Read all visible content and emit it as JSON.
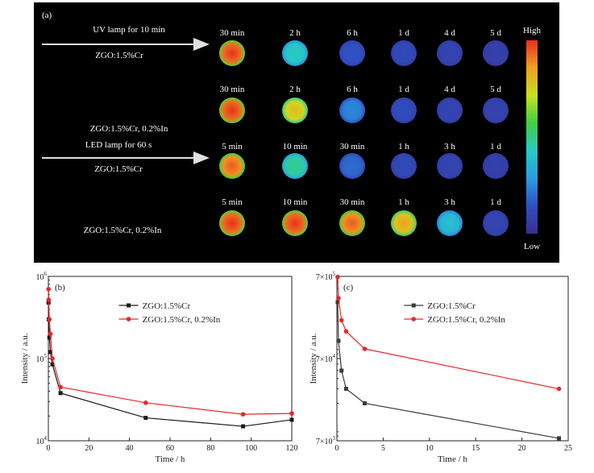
{
  "panel_a": {
    "label": "(a)",
    "arrow1_text_top": "UV lamp for 10 min",
    "arrow1_text_bottom": "ZGO:1.5%Cr",
    "arrow2_text_top": "ZGO:1.5%Cr, 0.2%In",
    "arrow2_text_mid": "LED lamp for 60 s",
    "arrow2_text_bottom": "ZGO:1.5%Cr",
    "row4_label": "ZGO:1.5%Cr, 0.2%In",
    "colorbar_high": "High",
    "colorbar_low": "Low",
    "rows": [
      {
        "times": [
          "30 min",
          "2 h",
          "6 h",
          "1 d",
          "4 d",
          "5 d"
        ],
        "intensity": [
          1.0,
          0.45,
          0.15,
          0.12,
          0.1,
          0.08
        ]
      },
      {
        "times": [
          "30 min",
          "2 h",
          "6 h",
          "1 d",
          "4 d",
          "5 d"
        ],
        "intensity": [
          1.0,
          0.8,
          0.25,
          0.13,
          0.1,
          0.09
        ]
      },
      {
        "times": [
          "5 min",
          "10 min",
          "30 min",
          "1 h",
          "3 h",
          "1 d"
        ],
        "intensity": [
          0.95,
          0.5,
          0.2,
          0.12,
          0.1,
          0.08
        ]
      },
      {
        "times": [
          "5 min",
          "10 min",
          "30 min",
          "1 h",
          "3 h",
          "1 d"
        ],
        "intensity": [
          1.0,
          1.0,
          0.95,
          0.85,
          0.4,
          0.1
        ]
      }
    ],
    "colormap": [
      "#3a2f8f",
      "#2f4fc2",
      "#2a9de0",
      "#27c9c9",
      "#3fcf3f",
      "#c8e020",
      "#f0a020",
      "#e83020"
    ]
  },
  "chart_data": [
    {
      "type": "line",
      "panel_label": "(b)",
      "xlabel": "Time / h",
      "ylabel": "Intensity / a.u.",
      "xlim": [
        0,
        120
      ],
      "ylim": [
        10000,
        1000000
      ],
      "yscale": "log",
      "xticks": [
        0,
        20,
        40,
        60,
        80,
        100,
        120
      ],
      "yticks": [
        {
          "value": 10000,
          "base": "10",
          "exp": "4"
        },
        {
          "value": 100000,
          "base": "10",
          "exp": "5"
        },
        {
          "value": 1000000,
          "base": "10",
          "exp": "6"
        }
      ],
      "legend": "top-center",
      "series": [
        {
          "name": "ZGO:1.5%Cr",
          "color": "#1a1a1a",
          "marker": "square",
          "x": [
            0.08,
            0.17,
            0.5,
            1,
            2,
            6,
            48,
            96,
            120
          ],
          "y": [
            480000,
            300000,
            180000,
            120000,
            85000,
            38000,
            19000,
            15000,
            18000
          ]
        },
        {
          "name": "ZGO:1.5%Cr, 0.2%In",
          "color": "#e8262a",
          "marker": "circle",
          "x": [
            0.08,
            0.17,
            0.5,
            1,
            2,
            6,
            48,
            96,
            120
          ],
          "y": [
            700000,
            520000,
            300000,
            200000,
            100000,
            45000,
            29000,
            21000,
            21500
          ]
        }
      ]
    },
    {
      "type": "line",
      "panel_label": "(c)",
      "xlabel": "Time / h",
      "ylabel": "Intensity / a.u.",
      "xlim": [
        0,
        25
      ],
      "ylim": [
        7000,
        700000
      ],
      "yscale": "log",
      "xticks": [
        0,
        5,
        10,
        15,
        20,
        25
      ],
      "yticks": [
        {
          "value": 7000,
          "base": "7×10",
          "exp": "3"
        },
        {
          "value": 70000,
          "base": "7×10",
          "exp": "4"
        },
        {
          "value": 700000,
          "base": "7×10",
          "exp": "5"
        }
      ],
      "legend": "top-center",
      "series": [
        {
          "name": "ZGO:1.5%Cr",
          "color": "#3a3a3a",
          "marker": "square",
          "x": [
            0.083,
            0.17,
            0.5,
            1,
            3,
            24
          ],
          "y": [
            340000,
            115000,
            50000,
            30000,
            20000,
            7500
          ]
        },
        {
          "name": "ZGO:1.5%Cr, 0.2%In",
          "color": "#e8262a",
          "marker": "circle",
          "x": [
            0.083,
            0.17,
            0.5,
            1,
            3,
            24
          ],
          "y": [
            690000,
            380000,
            205000,
            150000,
            92000,
            30000
          ]
        }
      ]
    }
  ]
}
